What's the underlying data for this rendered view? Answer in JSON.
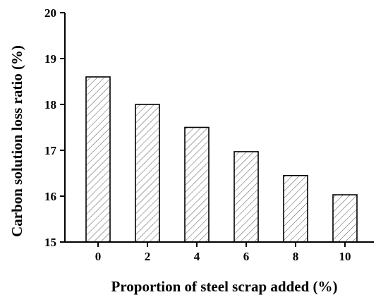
{
  "chart_data": {
    "type": "bar",
    "title": "",
    "xlabel": "Proportion of steel scrap added (%)",
    "ylabel": "Carbon solution loss ratio (%)",
    "categories": [
      "0",
      "2",
      "4",
      "6",
      "8",
      "10"
    ],
    "values": [
      18.6,
      18.0,
      17.5,
      16.97,
      16.45,
      16.03
    ],
    "ylim": [
      15,
      20
    ],
    "yticks": [
      "15",
      "16",
      "17",
      "18",
      "19",
      "20"
    ],
    "bar_fill": "hatched",
    "grid": false,
    "legend": "none",
    "colors": {
      "axis": "#000000",
      "bar_stroke": "#000000",
      "hatch": "#555555",
      "background": "#ffffff"
    }
  }
}
